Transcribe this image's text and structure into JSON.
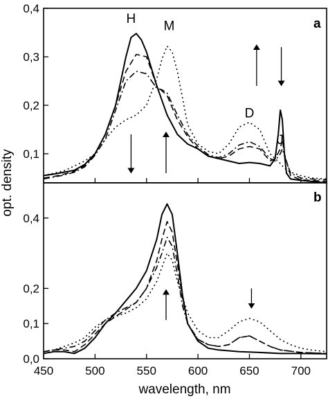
{
  "chart_data": [
    {
      "panel": "a",
      "type": "line",
      "xlabel": "wavelength, nm",
      "ylabel": "opt. density",
      "xlim": [
        450,
        725
      ],
      "ylim": [
        0.04,
        0.4
      ],
      "y_ticks": [
        "0,1",
        "0,2",
        "0,3",
        "0,4"
      ],
      "y_tick_values": [
        0.1,
        0.2,
        0.3,
        0.4
      ],
      "annotations": [
        {
          "text": "H",
          "x": 535,
          "y": 0.37
        },
        {
          "text": "M",
          "x": 572,
          "y": 0.355
        },
        {
          "text": "D",
          "x": 650,
          "y": 0.175
        },
        {
          "text": "J",
          "x": 680,
          "y": 0.12
        }
      ],
      "arrows": [
        {
          "x": 535,
          "y_from": 0.14,
          "y_to": 0.065
        },
        {
          "x": 569,
          "y_from": 0.06,
          "y_to": 0.14
        },
        {
          "x": 657,
          "y_from": 0.24,
          "y_to": 0.32
        },
        {
          "x": 681,
          "y_from": 0.32,
          "y_to": 0.245
        }
      ],
      "series": [
        {
          "style": "solid",
          "x": [
            450,
            460,
            470,
            480,
            490,
            500,
            510,
            520,
            530,
            535,
            540,
            545,
            550,
            560,
            570,
            580,
            590,
            600,
            610,
            620,
            630,
            640,
            650,
            660,
            670,
            675,
            678,
            680,
            682,
            684,
            686,
            690,
            700,
            710,
            725
          ],
          "y": [
            0.055,
            0.058,
            0.062,
            0.066,
            0.078,
            0.1,
            0.14,
            0.2,
            0.3,
            0.34,
            0.348,
            0.335,
            0.31,
            0.24,
            0.18,
            0.14,
            0.12,
            0.11,
            0.095,
            0.09,
            0.085,
            0.08,
            0.082,
            0.08,
            0.075,
            0.09,
            0.14,
            0.19,
            0.17,
            0.1,
            0.06,
            0.048,
            0.045,
            0.043,
            0.04
          ]
        },
        {
          "style": "dash",
          "x": [
            450,
            460,
            470,
            480,
            490,
            500,
            510,
            520,
            530,
            540,
            550,
            560,
            565,
            570,
            580,
            590,
            600,
            610,
            620,
            630,
            640,
            650,
            660,
            670,
            675,
            680,
            682,
            684,
            690,
            700,
            710,
            725
          ],
          "y": [
            0.05,
            0.053,
            0.058,
            0.064,
            0.075,
            0.1,
            0.14,
            0.2,
            0.27,
            0.305,
            0.3,
            0.24,
            0.23,
            0.22,
            0.17,
            0.135,
            0.11,
            0.095,
            0.09,
            0.095,
            0.11,
            0.115,
            0.11,
            0.085,
            0.09,
            0.11,
            0.13,
            0.1,
            0.055,
            0.046,
            0.045,
            0.043
          ]
        },
        {
          "style": "dashdot",
          "x": [
            450,
            460,
            470,
            480,
            490,
            500,
            510,
            520,
            530,
            540,
            550,
            560,
            565,
            570,
            580,
            590,
            600,
            610,
            620,
            630,
            640,
            650,
            660,
            670,
            675,
            680,
            682,
            685,
            690,
            700,
            710,
            725
          ],
          "y": [
            0.048,
            0.052,
            0.056,
            0.062,
            0.073,
            0.097,
            0.13,
            0.19,
            0.25,
            0.27,
            0.265,
            0.235,
            0.232,
            0.225,
            0.18,
            0.14,
            0.115,
            0.098,
            0.092,
            0.1,
            0.118,
            0.125,
            0.115,
            0.09,
            0.085,
            0.1,
            0.11,
            0.09,
            0.06,
            0.05,
            0.048,
            0.046
          ]
        },
        {
          "style": "dot",
          "x": [
            450,
            460,
            470,
            480,
            490,
            500,
            510,
            520,
            530,
            540,
            550,
            560,
            565,
            570,
            575,
            580,
            590,
            600,
            610,
            620,
            630,
            640,
            650,
            660,
            670,
            680,
            684,
            690,
            700,
            710,
            725
          ],
          "y": [
            0.055,
            0.06,
            0.065,
            0.075,
            0.085,
            0.1,
            0.13,
            0.155,
            0.17,
            0.18,
            0.2,
            0.255,
            0.295,
            0.322,
            0.31,
            0.27,
            0.16,
            0.12,
            0.105,
            0.1,
            0.12,
            0.155,
            0.165,
            0.15,
            0.1,
            0.08,
            0.07,
            0.062,
            0.055,
            0.05,
            0.048
          ]
        }
      ]
    },
    {
      "panel": "b",
      "type": "line",
      "xlabel": "wavelength, nm",
      "ylabel": "opt. density",
      "xlim": [
        450,
        725
      ],
      "ylim": [
        0,
        0.5
      ],
      "x_ticks": [
        "450",
        "500",
        "550",
        "600",
        "650",
        "700"
      ],
      "x_tick_values": [
        450,
        500,
        550,
        600,
        650,
        700
      ],
      "y_ticks": [
        "0,0",
        "0,1",
        "0,2",
        "0,4"
      ],
      "y_tick_values": [
        0.0,
        0.1,
        0.2,
        0.4
      ],
      "arrows": [
        {
          "x": 569,
          "y_from": 0.11,
          "y_to": 0.19
        },
        {
          "x": 652,
          "y_from": 0.2,
          "y_to": 0.15
        }
      ],
      "series": [
        {
          "style": "solid",
          "x": [
            450,
            460,
            470,
            480,
            490,
            500,
            510,
            520,
            530,
            540,
            550,
            560,
            565,
            570,
            575,
            580,
            585,
            590,
            600,
            610,
            620,
            640,
            660,
            680,
            700,
            725
          ],
          "y": [
            0.015,
            0.02,
            0.02,
            0.015,
            0.03,
            0.06,
            0.1,
            0.13,
            0.165,
            0.2,
            0.25,
            0.34,
            0.41,
            0.44,
            0.41,
            0.3,
            0.18,
            0.1,
            0.05,
            0.03,
            0.025,
            0.02,
            0.018,
            0.015,
            0.015,
            0.014
          ]
        },
        {
          "style": "dash",
          "x": [
            450,
            460,
            470,
            480,
            490,
            500,
            510,
            520,
            530,
            540,
            550,
            560,
            565,
            570,
            575,
            580,
            585,
            590,
            600,
            610,
            620,
            630,
            640,
            650,
            660,
            670,
            680,
            700,
            725
          ],
          "y": [
            0.02,
            0.025,
            0.025,
            0.02,
            0.04,
            0.07,
            0.1,
            0.12,
            0.14,
            0.16,
            0.2,
            0.28,
            0.34,
            0.39,
            0.36,
            0.27,
            0.17,
            0.1,
            0.055,
            0.04,
            0.035,
            0.04,
            0.06,
            0.065,
            0.05,
            0.035,
            0.025,
            0.018,
            0.015
          ]
        },
        {
          "style": "dashdot",
          "x": [
            450,
            460,
            470,
            480,
            490,
            500,
            510,
            520,
            530,
            540,
            550,
            560,
            565,
            570,
            575,
            580,
            585,
            590,
            600,
            610,
            620,
            630,
            640,
            650,
            660,
            670,
            680,
            700,
            725
          ],
          "y": [
            0.02,
            0.025,
            0.03,
            0.035,
            0.05,
            0.08,
            0.11,
            0.13,
            0.145,
            0.16,
            0.2,
            0.26,
            0.3,
            0.345,
            0.32,
            0.24,
            0.15,
            0.1,
            0.055,
            0.04,
            0.035,
            0.04,
            0.06,
            0.065,
            0.05,
            0.035,
            0.025,
            0.018,
            0.015
          ]
        },
        {
          "style": "dot",
          "x": [
            450,
            460,
            470,
            480,
            490,
            500,
            510,
            520,
            530,
            540,
            550,
            560,
            565,
            570,
            575,
            580,
            590,
            600,
            610,
            620,
            630,
            640,
            650,
            660,
            670,
            680,
            690,
            700,
            710,
            725
          ],
          "y": [
            0.02,
            0.025,
            0.035,
            0.045,
            0.06,
            0.09,
            0.11,
            0.12,
            0.13,
            0.145,
            0.17,
            0.22,
            0.26,
            0.3,
            0.28,
            0.22,
            0.13,
            0.08,
            0.06,
            0.06,
            0.08,
            0.105,
            0.115,
            0.105,
            0.08,
            0.055,
            0.04,
            0.03,
            0.025,
            0.02
          ]
        }
      ]
    }
  ]
}
